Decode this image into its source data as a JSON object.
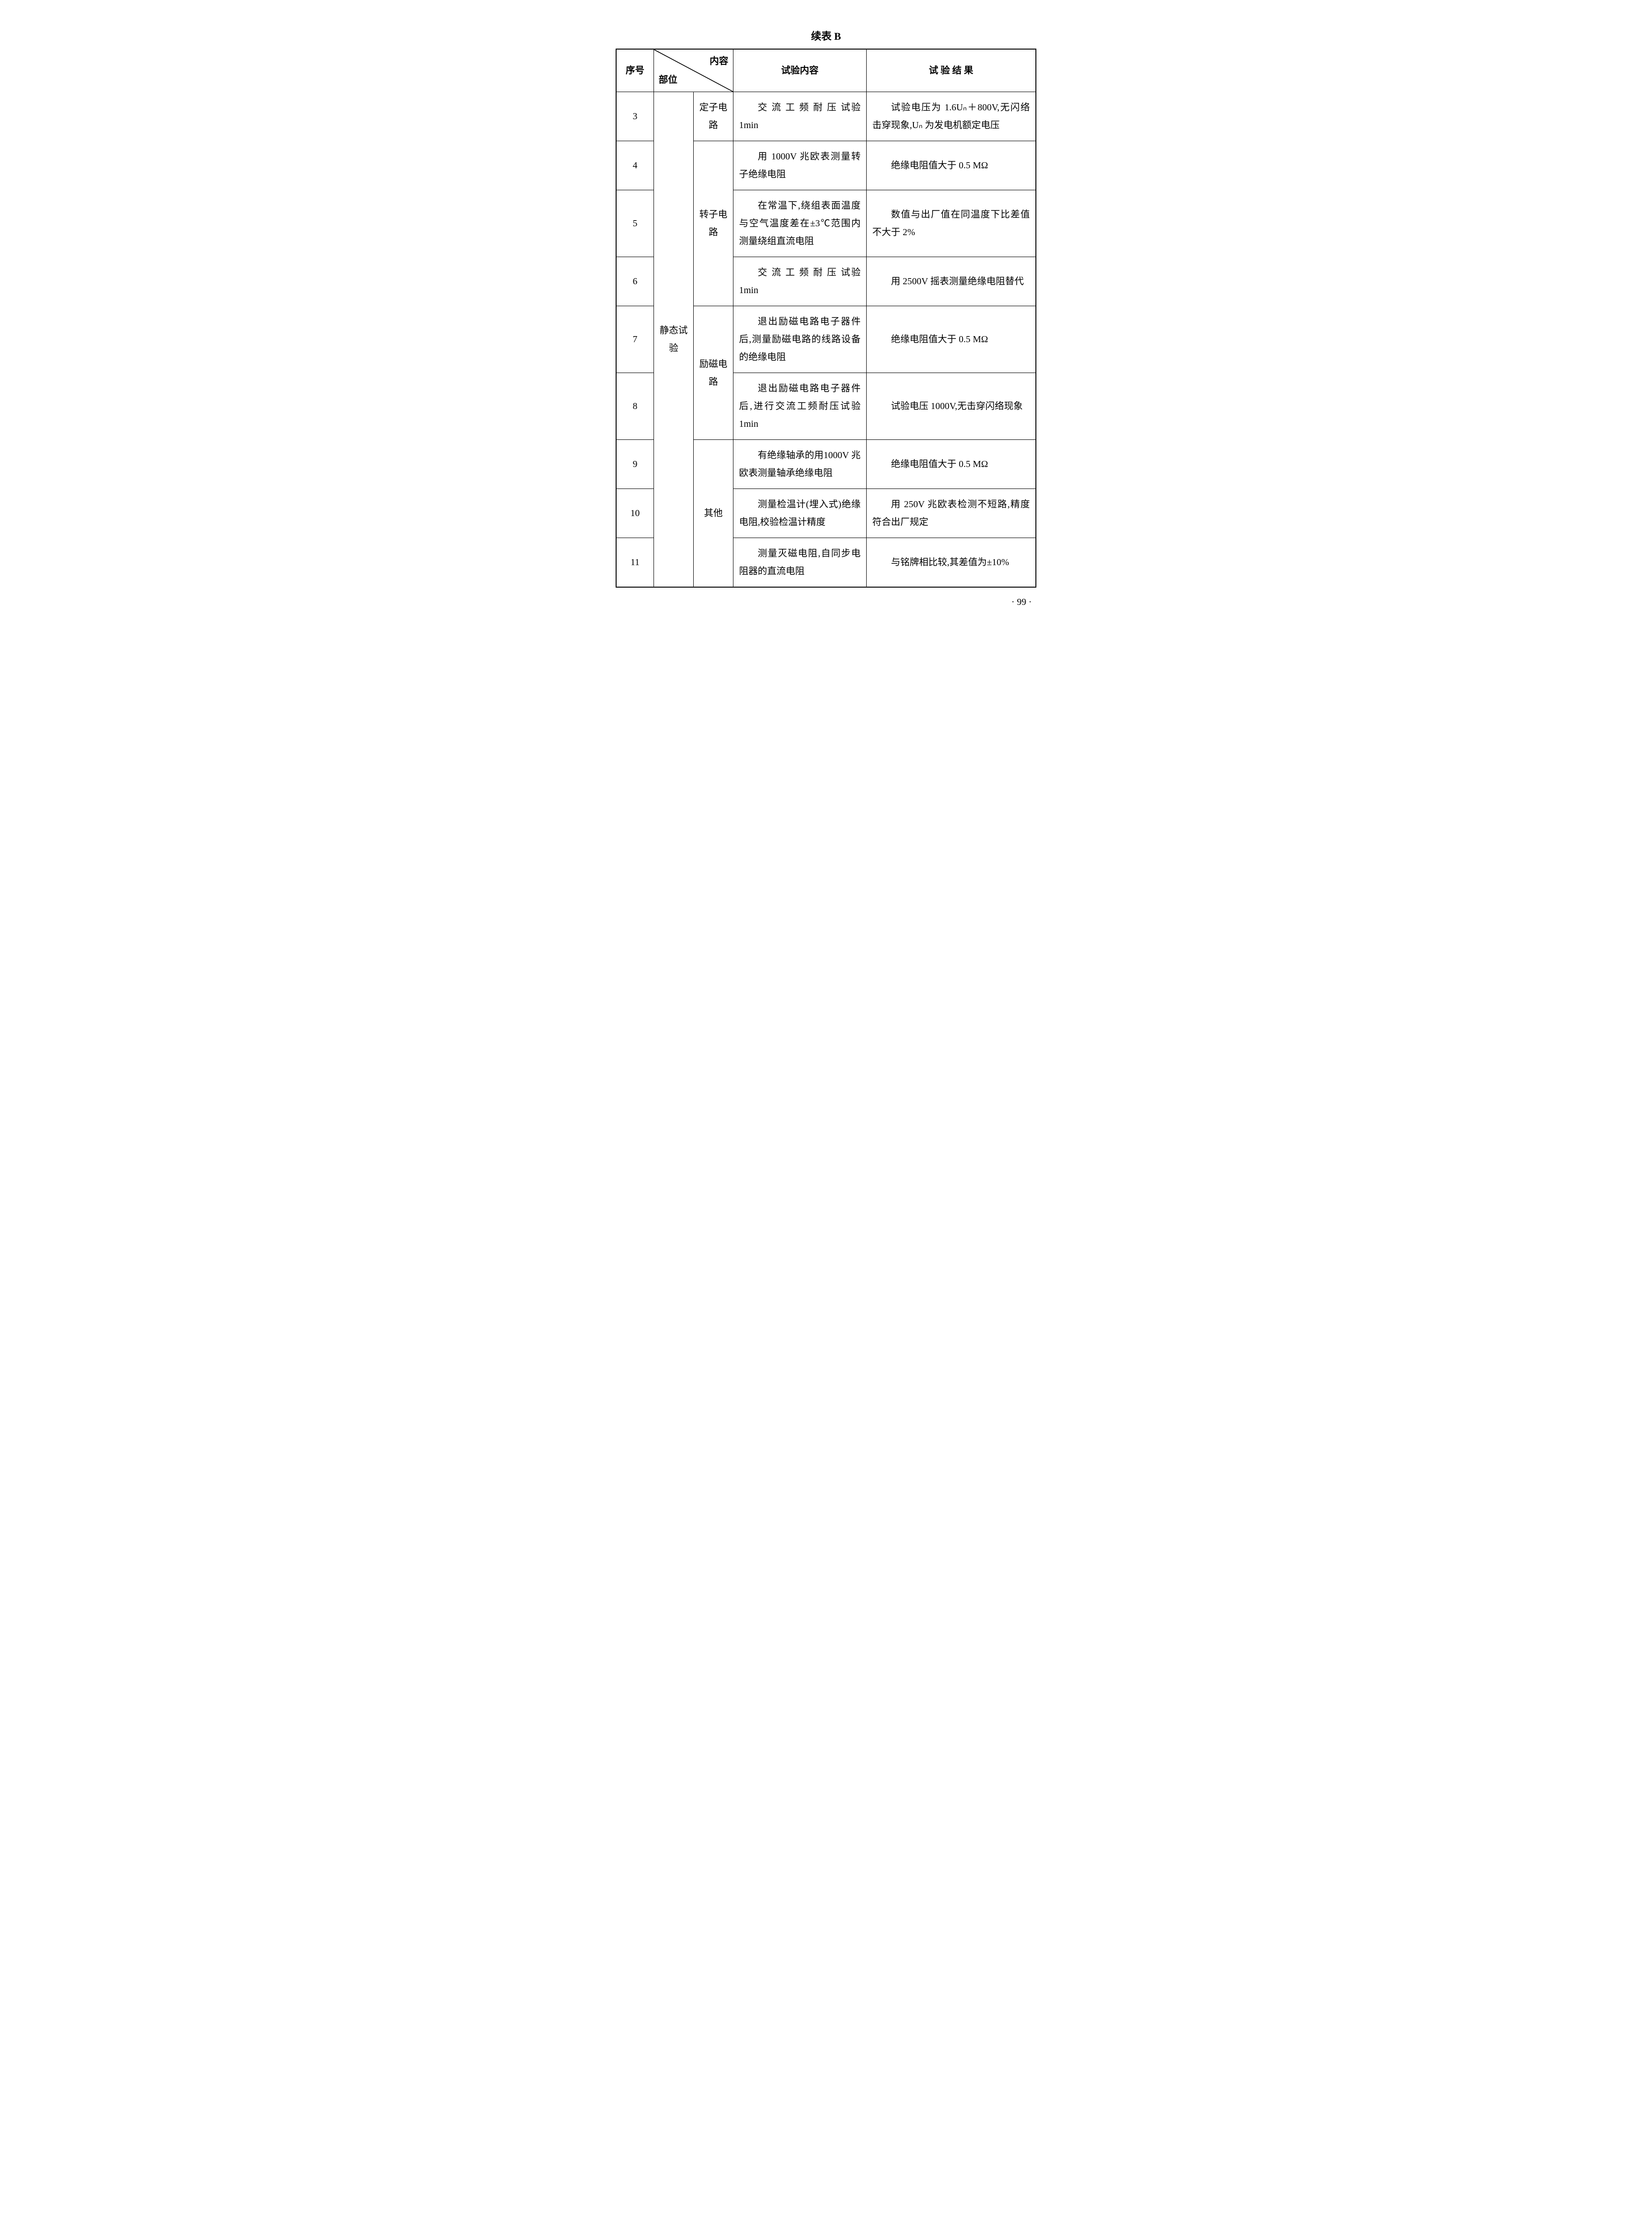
{
  "title": "续表 B",
  "page_number": "· 99 ·",
  "columns": {
    "seq": "序号",
    "content": "内容",
    "part": "部位",
    "test": "试验内容",
    "result": "试 验 结 果"
  },
  "part_label": "静态试验",
  "groups": [
    {
      "sub_label": "定子电路",
      "rows": [
        {
          "seq": "3",
          "test": "交 流 工 频 耐 压 试验 1min",
          "result": "试验电压为 1.6Uₙ＋800V,无闪络击穿现象,Uₙ 为发电机额定电压"
        }
      ]
    },
    {
      "sub_label": "转子电路",
      "rows": [
        {
          "seq": "4",
          "test": "用 1000V 兆欧表测量转子绝缘电阻",
          "result": "绝缘电阻值大于 0.5 MΩ"
        },
        {
          "seq": "5",
          "test": "在常温下,绕组表面温度与空气温度差在±3℃范围内测量绕组直流电阻",
          "result": "数值与出厂值在同温度下比差值不大于 2%"
        },
        {
          "seq": "6",
          "test": "交 流 工 频 耐 压 试验 1min",
          "result": "用 2500V 摇表测量绝缘电阻替代"
        }
      ]
    },
    {
      "sub_label": "励磁电路",
      "rows": [
        {
          "seq": "7",
          "test": "退出励磁电路电子器件后,测量励磁电路的线路设备的绝缘电阻",
          "result": "绝缘电阻值大于 0.5 MΩ"
        },
        {
          "seq": "8",
          "test": "退出励磁电路电子器件后,进行交流工频耐压试验 1min",
          "result": "试验电压 1000V,无击穿闪络现象"
        }
      ]
    },
    {
      "sub_label": "其他",
      "rows": [
        {
          "seq": "9",
          "test": "有绝缘轴承的用1000V 兆欧表测量轴承绝缘电阻",
          "result": "绝缘电阻值大于 0.5 MΩ"
        },
        {
          "seq": "10",
          "test": "测量检温计(埋入式)绝缘电阻,校验检温计精度",
          "result": "用 250V 兆欧表检测不短路,精度符合出厂规定"
        },
        {
          "seq": "11",
          "test": "测量灭磁电阻,自同步电阻器的直流电阻",
          "result": "与铭牌相比较,其差值为±10%"
        }
      ]
    }
  ]
}
